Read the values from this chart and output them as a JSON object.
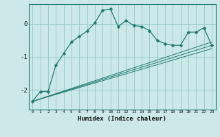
{
  "xlabel": "Humidex (Indice chaleur)",
  "bg_color": "#cce8e8",
  "grid_color": "#99cccc",
  "line_color": "#1a7a6e",
  "xlim": [
    -0.5,
    23.5
  ],
  "ylim": [
    -2.6,
    0.6
  ],
  "yticks": [
    0,
    -1,
    -2
  ],
  "xticks": [
    0,
    1,
    2,
    3,
    4,
    5,
    6,
    7,
    8,
    9,
    10,
    11,
    12,
    13,
    14,
    15,
    16,
    17,
    18,
    19,
    20,
    21,
    22,
    23
  ],
  "series_main": {
    "x": [
      0,
      1,
      2,
      3,
      4,
      5,
      6,
      7,
      8,
      9,
      10,
      11,
      12,
      13,
      14,
      15,
      16,
      17,
      18,
      19,
      20,
      21,
      22,
      23
    ],
    "y": [
      -2.35,
      -2.05,
      -2.05,
      -1.25,
      -0.9,
      -0.55,
      -0.38,
      -0.22,
      0.03,
      0.42,
      0.45,
      -0.08,
      0.1,
      -0.05,
      -0.08,
      -0.2,
      -0.5,
      -0.6,
      -0.65,
      -0.65,
      -0.25,
      -0.25,
      -0.12,
      -0.65
    ]
  },
  "series_lines": [
    {
      "x": [
        0,
        23
      ],
      "y": [
        -2.35,
        -0.65
      ]
    },
    {
      "x": [
        0,
        23
      ],
      "y": [
        -2.35,
        -0.75
      ]
    },
    {
      "x": [
        0,
        23
      ],
      "y": [
        -2.35,
        -0.55
      ]
    }
  ]
}
